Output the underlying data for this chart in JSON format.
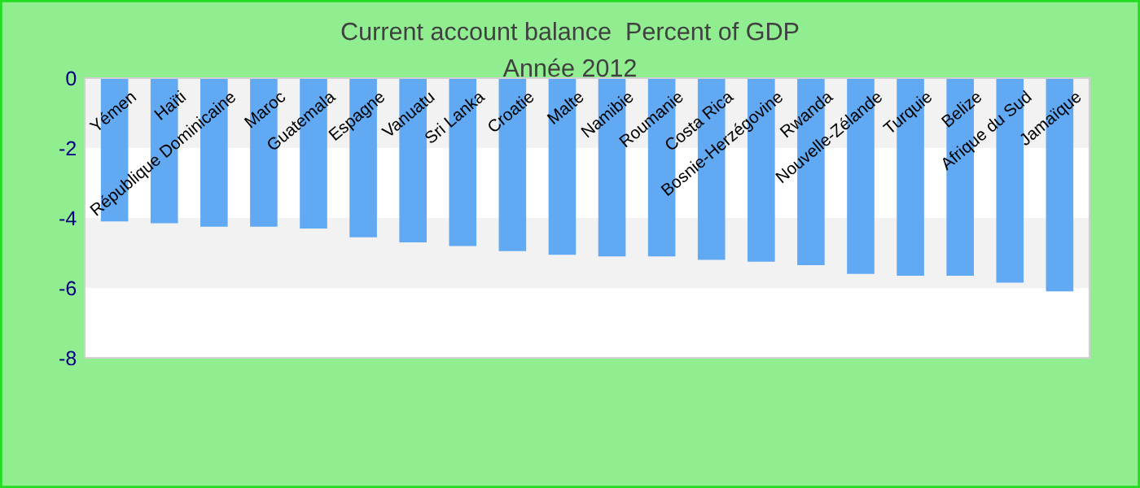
{
  "chart_data": {
    "type": "bar",
    "title": "Current account balance  Percent of GDP",
    "subtitle": "Année 2012",
    "categories": [
      "Yémen",
      "Haïti",
      "République Dominicaine",
      "Maroc",
      "Guatemala",
      "Espagne",
      "Vanuatu",
      "Sri Lanka",
      "Croatie",
      "Malte",
      "Namibie",
      "Roumanie",
      "Costa Rica",
      "Bosnie-Herzégovine",
      "Rwanda",
      "Nouvelle-Zélande",
      "Turquie",
      "Belize",
      "Afrique du Sud",
      "Jamaïque"
    ],
    "values": [
      -4.1,
      -4.15,
      -4.25,
      -4.25,
      -4.3,
      -4.55,
      -4.7,
      -4.8,
      -4.95,
      -5.05,
      -5.1,
      -5.1,
      -5.2,
      -5.25,
      -5.35,
      -5.6,
      -5.65,
      -5.65,
      -5.85,
      -6.1
    ],
    "color": "#62a9f3",
    "ylim": [
      -8,
      0
    ],
    "yticks": [
      0,
      -2,
      -4,
      -6,
      -8
    ],
    "bands": [
      {
        "axis": "y",
        "from": 0,
        "to": -2,
        "color": "#f2f2f2"
      },
      {
        "axis": "y",
        "from": -4,
        "to": -6,
        "color": "#f2f2f2"
      }
    ],
    "grid": false,
    "legend": false
  }
}
